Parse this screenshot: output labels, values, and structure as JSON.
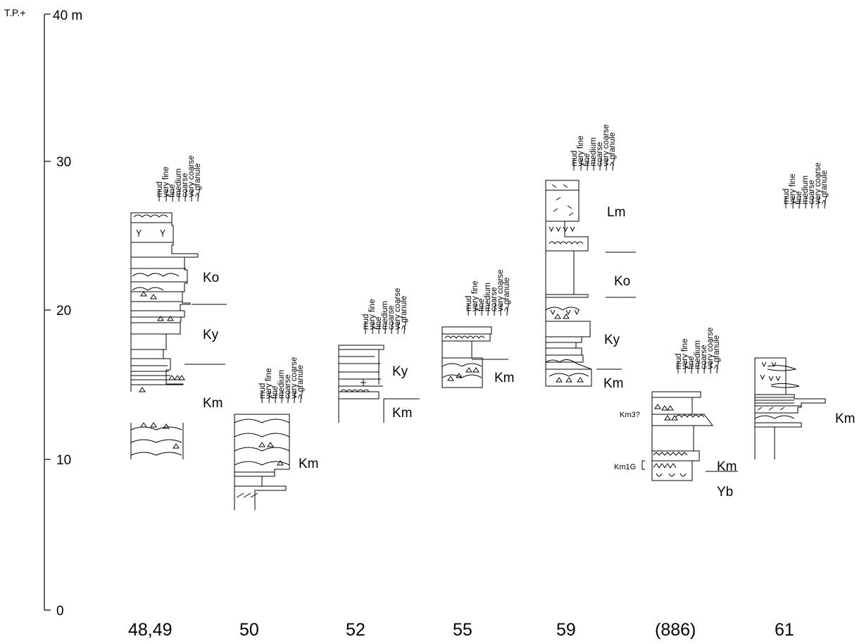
{
  "axis": {
    "prefix": "T.P.+",
    "max_label": "40 m",
    "ticks": [
      {
        "label": "0",
        "value": 0
      },
      {
        "label": "10",
        "value": 10
      },
      {
        "label": "20",
        "value": 20
      },
      {
        "label": "30",
        "value": 30
      }
    ]
  },
  "grain_scale": [
    "mud",
    "very fine",
    "fine",
    "medium",
    "coarse",
    "very coarse",
    "> granule"
  ],
  "sections": [
    {
      "id": "48,49",
      "units": [
        {
          "label": "Ko",
          "boundary_top_m": null
        },
        {
          "label": "Ky",
          "boundary_top_m": 20.5
        },
        {
          "label": "Km",
          "boundary_top_m": 16.4
        }
      ]
    },
    {
      "id": "50",
      "units": [
        {
          "label": "Km",
          "boundary_top_m": null
        }
      ]
    },
    {
      "id": "52",
      "units": [
        {
          "label": "Ky",
          "boundary_top_m": null
        },
        {
          "label": "Km",
          "boundary_top_m": 14.0
        }
      ]
    },
    {
      "id": "55",
      "units": [
        {
          "label": "Km",
          "boundary_top_m": 16.7
        }
      ]
    },
    {
      "id": "59",
      "units": [
        {
          "label": "Lm",
          "boundary_top_m": null
        },
        {
          "label": "Ko",
          "boundary_top_m": 23.9
        },
        {
          "label": "Ky",
          "boundary_top_m": 21.0
        },
        {
          "label": "Km",
          "boundary_top_m": 16.1
        }
      ]
    },
    {
      "id": "(886)",
      "units": [
        {
          "label": "Km",
          "boundary_top_m": null
        },
        {
          "label": "Yb",
          "boundary_top_m": 9.3
        }
      ],
      "side_labels": [
        "Km3?",
        "Km1G"
      ]
    },
    {
      "id": "61",
      "units": [
        {
          "label": "Km",
          "boundary_top_m": null
        }
      ]
    }
  ]
}
